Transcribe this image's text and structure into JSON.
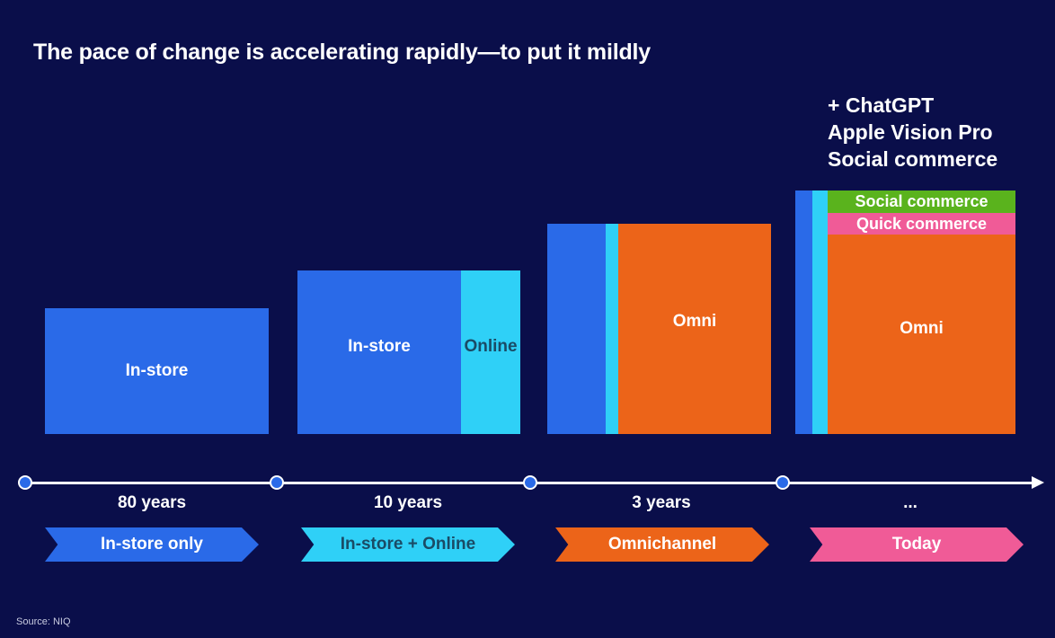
{
  "title": "The pace of change is accelerating rapidly—to put it mildly",
  "today_note": [
    "+ ChatGPT",
    "Apple Vision Pro",
    "Social commerce"
  ],
  "eras": [
    {
      "duration": "80 years",
      "label": "In-store only",
      "color": "#2a6ae8"
    },
    {
      "duration": "10 years",
      "label": "In-store + Online",
      "color": "#2fd0f7"
    },
    {
      "duration": "3 years",
      "label": "Omnichannel",
      "color": "#ec6419"
    },
    {
      "duration": "...",
      "label": "Today",
      "color": "#f05b97"
    }
  ],
  "blocks": {
    "instore_only": "In-store",
    "instore_online_a": "In-store",
    "instore_online_b": "Online",
    "omni_3": "Omni",
    "today_social": "Social commerce",
    "today_quick": "Quick commerce",
    "today_omni": "Omni"
  },
  "source": "Source: NIQ"
}
